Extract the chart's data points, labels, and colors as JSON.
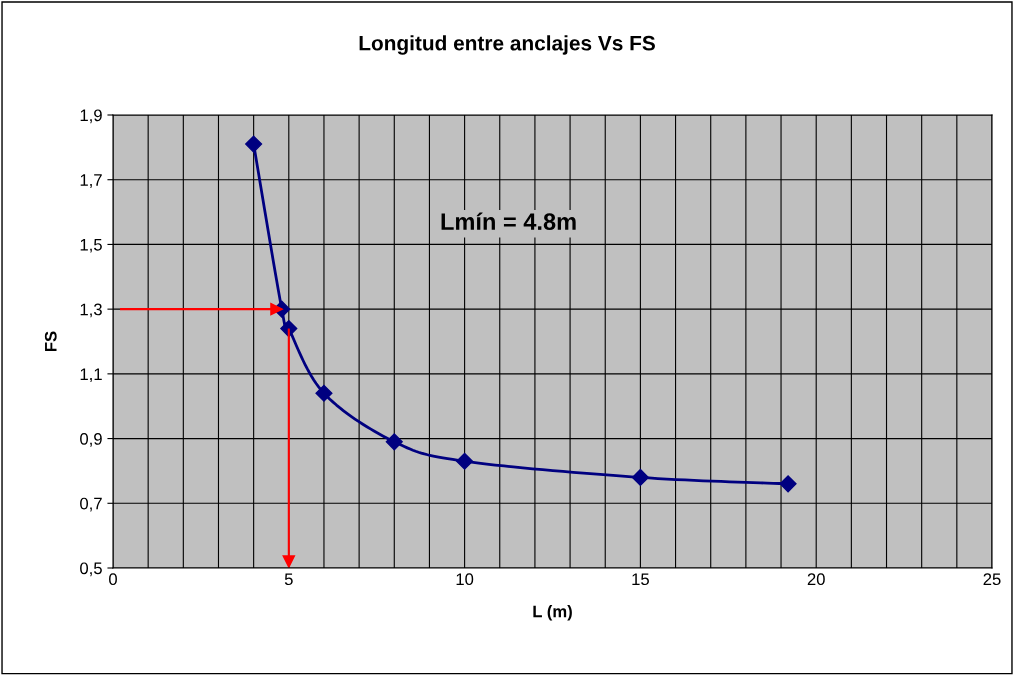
{
  "chart_data": {
    "type": "line",
    "title": "Longitud entre anclajes Vs FS",
    "xlabel": "L (m)",
    "ylabel": "FS",
    "series": [
      {
        "color": "#000080",
        "x": [
          4,
          4.8,
          5,
          6,
          8,
          10,
          15,
          19.2
        ],
        "values": [
          1.81,
          1.3,
          1.24,
          1.04,
          0.89,
          0.83,
          0.78,
          0.76
        ]
      }
    ],
    "marker": "diamond",
    "line_style": "solid",
    "grid": true,
    "xlim": [
      0,
      25
    ],
    "xticks": [
      0,
      {
        "value": 1,
        "label": null
      },
      {
        "value": 2,
        "label": null
      },
      {
        "value": 3,
        "label": null
      },
      {
        "value": 4,
        "label": null
      },
      5,
      {
        "value": 6,
        "label": null
      },
      {
        "value": 7,
        "label": null
      },
      {
        "value": 8,
        "label": null
      },
      {
        "value": 9,
        "label": null
      },
      10,
      {
        "value": 11,
        "label": null
      },
      {
        "value": 12,
        "label": null
      },
      {
        "value": 13,
        "label": null
      },
      {
        "value": 14,
        "label": null
      },
      15,
      {
        "value": 16,
        "label": null
      },
      {
        "value": 17,
        "label": null
      },
      {
        "value": 18,
        "label": null
      },
      {
        "value": 19,
        "label": null
      },
      20,
      {
        "value": 21,
        "label": null
      },
      {
        "value": 22,
        "label": null
      },
      {
        "value": 23,
        "label": null
      },
      {
        "value": 24,
        "label": null
      },
      25
    ],
    "ylim": [
      0.5,
      1.9
    ],
    "yticks": [
      {
        "value": 0.5,
        "label": "0,5"
      },
      {
        "value": 0.7,
        "label": "0,7"
      },
      {
        "value": 0.9,
        "label": "0,9"
      },
      {
        "value": 1.1,
        "label": "1,1"
      },
      {
        "value": 1.3,
        "label": "1,3"
      },
      {
        "value": 1.5,
        "label": "1,5"
      },
      {
        "value": 1.7,
        "label": "1,7"
      },
      {
        "value": 1.9,
        "label": "1,9"
      }
    ],
    "ref_lines": [
      {
        "axis": "y",
        "value": 1.3,
        "color": "#ff0000"
      },
      {
        "axis": "x",
        "value": 5,
        "color": "#ff0000"
      }
    ],
    "annotations": [
      "Lmín = 4.8m"
    ]
  }
}
